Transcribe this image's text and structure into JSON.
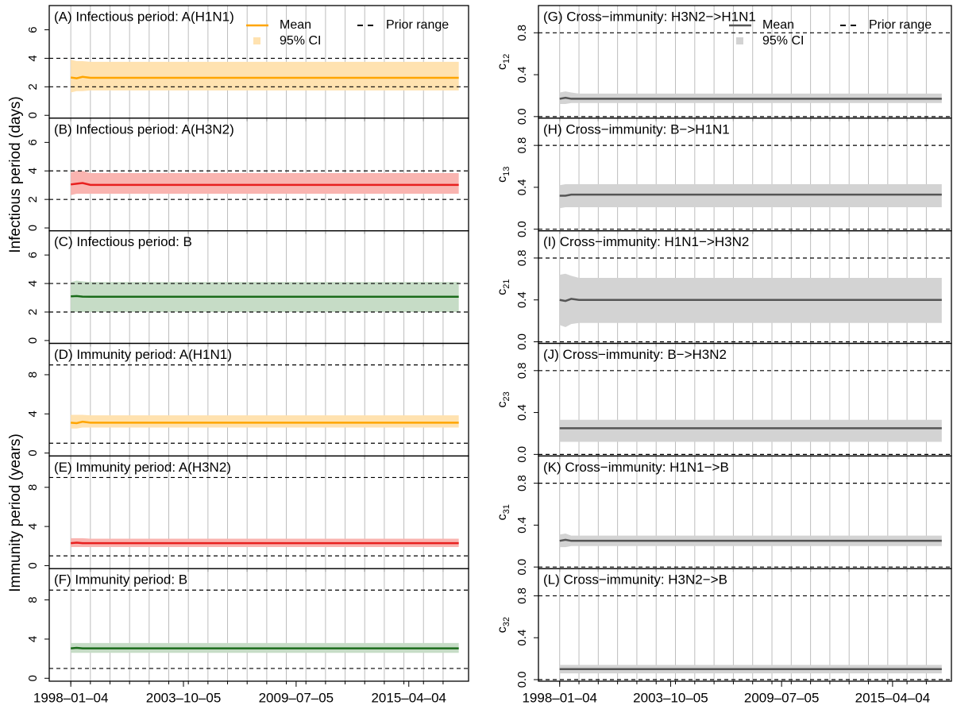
{
  "left_axis_labels": [
    "Infectious period (days)",
    "Immunity period (years)"
  ],
  "chart_data": [
    {
      "type": "line",
      "title": "(A) Infectious period: A(H1N1)",
      "legend": "top-right",
      "x": [
        1998.0,
        1998.3,
        1998.6,
        1999.0,
        2017.8
      ],
      "series": [
        {
          "name": "Mean",
          "color": "#ffa500",
          "values": [
            2.65,
            2.6,
            2.7,
            2.63,
            2.63
          ]
        }
      ],
      "ci": {
        "name": "95% CI",
        "color": "#ffe2b0",
        "lower": [
          1.6,
          1.7,
          1.7,
          1.75,
          1.75
        ],
        "upper": [
          3.9,
          3.8,
          3.8,
          3.75,
          3.75
        ]
      },
      "prior": {
        "name": "Prior range",
        "values": [
          2,
          4
        ]
      },
      "xlim": [
        1996.9,
        2018.3
      ],
      "xgrid": [
        1998,
        1999,
        2000,
        2001,
        2002,
        2003,
        2004,
        2005,
        2006,
        2007,
        2008,
        2009,
        2010,
        2011,
        2012,
        2013,
        2014,
        2015,
        2016,
        2017
      ],
      "ylim": [
        -0.2,
        7.7
      ],
      "yticks": [
        0,
        2,
        4,
        6
      ]
    },
    {
      "type": "line",
      "title": "(B) Infectious period: A(H3N2)",
      "x": [
        1998.0,
        1998.3,
        1998.6,
        1999.0,
        2017.8
      ],
      "series": [
        {
          "color": "#e8201f",
          "values": [
            3.05,
            3.1,
            3.15,
            3.02,
            3.02
          ]
        }
      ],
      "ci": {
        "color": "#f9b4b0",
        "lower": [
          2.3,
          2.4,
          2.4,
          2.4,
          2.4
        ],
        "upper": [
          3.9,
          4.0,
          4.0,
          3.85,
          3.85
        ]
      },
      "prior": {
        "values": [
          2,
          4
        ]
      },
      "xlim": [
        1996.9,
        2018.3
      ],
      "xgrid": [
        1998,
        1999,
        2000,
        2001,
        2002,
        2003,
        2004,
        2005,
        2006,
        2007,
        2008,
        2009,
        2010,
        2011,
        2012,
        2013,
        2014,
        2015,
        2016,
        2017
      ],
      "ylim": [
        -0.2,
        7.7
      ],
      "yticks": [
        0,
        2,
        4,
        6
      ]
    },
    {
      "type": "line",
      "title": "(C) Infectious period: B",
      "x": [
        1998.0,
        1998.3,
        1998.6,
        1999.0,
        2017.8
      ],
      "series": [
        {
          "color": "#1a6b1a",
          "values": [
            3.1,
            3.12,
            3.08,
            3.07,
            3.07
          ]
        }
      ],
      "ci": {
        "color": "#c6dcc6",
        "lower": [
          2.0,
          2.0,
          2.0,
          2.0,
          2.0
        ],
        "upper": [
          4.1,
          4.2,
          4.15,
          4.1,
          4.1
        ]
      },
      "prior": {
        "values": [
          2,
          4
        ]
      },
      "xlim": [
        1996.9,
        2018.3
      ],
      "xgrid": [
        1998,
        1999,
        2000,
        2001,
        2002,
        2003,
        2004,
        2005,
        2006,
        2007,
        2008,
        2009,
        2010,
        2011,
        2012,
        2013,
        2014,
        2015,
        2016,
        2017
      ],
      "ylim": [
        -0.2,
        7.7
      ],
      "yticks": [
        0,
        2,
        4,
        6
      ]
    },
    {
      "type": "line",
      "title": "(D) Immunity period: A(H1N1)",
      "x": [
        1998.0,
        1998.3,
        1998.6,
        1999.0,
        2017.8
      ],
      "series": [
        {
          "color": "#ffa500",
          "values": [
            3.1,
            3.05,
            3.2,
            3.1,
            3.1
          ]
        }
      ],
      "ci": {
        "color": "#ffe2b0",
        "lower": [
          2.5,
          2.5,
          2.6,
          2.6,
          2.6
        ],
        "upper": [
          3.9,
          3.9,
          3.9,
          3.85,
          3.85
        ]
      },
      "prior": {
        "values": [
          1,
          9
        ]
      },
      "xlim": [
        1996.9,
        2018.3
      ],
      "xgrid": [
        1998,
        1999,
        2000,
        2001,
        2002,
        2003,
        2004,
        2005,
        2006,
        2007,
        2008,
        2009,
        2010,
        2011,
        2012,
        2013,
        2014,
        2015,
        2016,
        2017
      ],
      "ylim": [
        -0.3,
        11.2
      ],
      "yticks": [
        0,
        4,
        8
      ]
    },
    {
      "type": "line",
      "title": "(E) Immunity period: A(H3N2)",
      "x": [
        1998.0,
        1998.3,
        1998.6,
        1999.0,
        2017.8
      ],
      "series": [
        {
          "color": "#e8201f",
          "values": [
            2.3,
            2.35,
            2.3,
            2.3,
            2.3
          ]
        }
      ],
      "ci": {
        "color": "#f9b4b0",
        "lower": [
          1.9,
          1.9,
          1.9,
          1.9,
          1.9
        ],
        "upper": [
          2.8,
          2.8,
          2.8,
          2.75,
          2.75
        ]
      },
      "prior": {
        "values": [
          1,
          9
        ]
      },
      "xlim": [
        1996.9,
        2018.3
      ],
      "xgrid": [
        1998,
        1999,
        2000,
        2001,
        2002,
        2003,
        2004,
        2005,
        2006,
        2007,
        2008,
        2009,
        2010,
        2011,
        2012,
        2013,
        2014,
        2015,
        2016,
        2017
      ],
      "ylim": [
        -0.3,
        11.2
      ],
      "yticks": [
        0,
        4,
        8
      ]
    },
    {
      "type": "line",
      "title": "(F) Immunity period: B",
      "x": [
        1998.0,
        1998.3,
        1998.6,
        1999.0,
        2017.8
      ],
      "series": [
        {
          "color": "#1a6b1a",
          "values": [
            3.05,
            3.1,
            3.05,
            3.05,
            3.05
          ]
        }
      ],
      "ci": {
        "color": "#c6dcc6",
        "lower": [
          2.6,
          2.6,
          2.6,
          2.6,
          2.6
        ],
        "upper": [
          3.6,
          3.6,
          3.6,
          3.6,
          3.6
        ]
      },
      "prior": {
        "values": [
          1,
          9
        ]
      },
      "xlim": [
        1996.9,
        2018.3
      ],
      "xgrid": [
        1998,
        1999,
        2000,
        2001,
        2002,
        2003,
        2004,
        2005,
        2006,
        2007,
        2008,
        2009,
        2010,
        2011,
        2012,
        2013,
        2014,
        2015,
        2016,
        2017
      ],
      "xticks": [
        {
          "value": 1998.0,
          "label": "1998–01–04"
        },
        {
          "value": 2003.75,
          "label": "2003–10–05"
        },
        {
          "value": 2009.5,
          "label": "2009–07–05"
        },
        {
          "value": 2015.25,
          "label": "2015–04–04"
        }
      ],
      "ylim": [
        -0.3,
        11.2
      ],
      "yticks": [
        0,
        4,
        8
      ]
    },
    {
      "type": "line",
      "title": "(G) Cross−immunity: H3N2−>H1N1",
      "ylabel": "c",
      "ylabel_sub": "12",
      "legend": "top-right",
      "x": [
        1998.0,
        1998.3,
        1998.6,
        1999.0,
        2017.8
      ],
      "series": [
        {
          "name": "Mean",
          "color": "#555555",
          "values": [
            0.17,
            0.18,
            0.17,
            0.17,
            0.17
          ]
        }
      ],
      "ci": {
        "name": "95% CI",
        "color": "#d3d3d3",
        "lower": [
          0.12,
          0.12,
          0.13,
          0.13,
          0.13
        ],
        "upper": [
          0.23,
          0.24,
          0.23,
          0.22,
          0.22
        ]
      },
      "prior": {
        "name": "Prior range",
        "values": [
          0,
          0.8
        ]
      },
      "xlim": [
        1996.9,
        2018.3
      ],
      "xgrid": [
        1998,
        1999,
        2000,
        2001,
        2002,
        2003,
        2004,
        2005,
        2006,
        2007,
        2008,
        2009,
        2010,
        2011,
        2012,
        2013,
        2014,
        2015,
        2016,
        2017
      ],
      "ylim": [
        -0.015,
        1.06
      ],
      "yticks": [
        {
          "value": 0,
          "label": "0.0"
        },
        0.4,
        0.8
      ]
    },
    {
      "type": "line",
      "title": "(H) Cross−immunity: B−>H1N1",
      "ylabel": "c",
      "ylabel_sub": "13",
      "x": [
        1998.0,
        1998.3,
        1998.6,
        1999.0,
        2017.8
      ],
      "series": [
        {
          "color": "#555555",
          "values": [
            0.32,
            0.32,
            0.33,
            0.33,
            0.33
          ]
        }
      ],
      "ci": {
        "color": "#d3d3d3",
        "lower": [
          0.2,
          0.21,
          0.21,
          0.21,
          0.21
        ],
        "upper": [
          0.42,
          0.43,
          0.43,
          0.43,
          0.43
        ]
      },
      "prior": {
        "values": [
          0,
          0.8
        ]
      },
      "xlim": [
        1996.9,
        2018.3
      ],
      "xgrid": [
        1998,
        1999,
        2000,
        2001,
        2002,
        2003,
        2004,
        2005,
        2006,
        2007,
        2008,
        2009,
        2010,
        2011,
        2012,
        2013,
        2014,
        2015,
        2016,
        2017
      ],
      "ylim": [
        -0.015,
        1.06
      ],
      "yticks": [
        {
          "value": 0,
          "label": "0.0"
        },
        0.4,
        0.8
      ]
    },
    {
      "type": "line",
      "title": "(I) Cross−immunity: H1N1−>H3N2",
      "ylabel": "c",
      "ylabel_sub": "21",
      "x": [
        1998.0,
        1998.3,
        1998.6,
        1999.0,
        2017.8
      ],
      "series": [
        {
          "color": "#555555",
          "values": [
            0.4,
            0.39,
            0.41,
            0.4,
            0.4
          ]
        }
      ],
      "ci": {
        "color": "#d3d3d3",
        "lower": [
          0.16,
          0.14,
          0.17,
          0.18,
          0.18
        ],
        "upper": [
          0.64,
          0.65,
          0.63,
          0.61,
          0.61
        ]
      },
      "prior": {
        "values": [
          0,
          0.8
        ]
      },
      "xlim": [
        1996.9,
        2018.3
      ],
      "xgrid": [
        1998,
        1999,
        2000,
        2001,
        2002,
        2003,
        2004,
        2005,
        2006,
        2007,
        2008,
        2009,
        2010,
        2011,
        2012,
        2013,
        2014,
        2015,
        2016,
        2017
      ],
      "ylim": [
        -0.015,
        1.06
      ],
      "yticks": [
        {
          "value": 0,
          "label": "0.0"
        },
        0.4,
        0.8
      ]
    },
    {
      "type": "line",
      "title": "(J) Cross−immunity: B−>H3N2",
      "ylabel": "c",
      "ylabel_sub": "23",
      "x": [
        1998.0,
        1998.3,
        1998.6,
        1999.0,
        2017.8
      ],
      "series": [
        {
          "color": "#555555",
          "values": [
            0.25,
            0.25,
            0.25,
            0.25,
            0.25
          ]
        }
      ],
      "ci": {
        "color": "#d3d3d3",
        "lower": [
          0.12,
          0.12,
          0.12,
          0.12,
          0.12
        ],
        "upper": [
          0.33,
          0.33,
          0.33,
          0.33,
          0.33
        ]
      },
      "prior": {
        "values": [
          0,
          0.8
        ]
      },
      "xlim": [
        1996.9,
        2018.3
      ],
      "xgrid": [
        1998,
        1999,
        2000,
        2001,
        2002,
        2003,
        2004,
        2005,
        2006,
        2007,
        2008,
        2009,
        2010,
        2011,
        2012,
        2013,
        2014,
        2015,
        2016,
        2017
      ],
      "ylim": [
        -0.015,
        1.06
      ],
      "yticks": [
        {
          "value": 0,
          "label": "0.0"
        },
        0.4,
        0.8
      ]
    },
    {
      "type": "line",
      "title": "(K) Cross−immunity: H1N1−>B",
      "ylabel": "c",
      "ylabel_sub": "31",
      "x": [
        1998.0,
        1998.3,
        1998.6,
        1999.0,
        2017.8
      ],
      "series": [
        {
          "color": "#555555",
          "values": [
            0.25,
            0.26,
            0.25,
            0.25,
            0.25
          ]
        }
      ],
      "ci": {
        "color": "#d3d3d3",
        "lower": [
          0.19,
          0.19,
          0.2,
          0.2,
          0.2
        ],
        "upper": [
          0.31,
          0.32,
          0.3,
          0.3,
          0.3
        ]
      },
      "prior": {
        "values": [
          0,
          0.8
        ]
      },
      "xlim": [
        1996.9,
        2018.3
      ],
      "xgrid": [
        1998,
        1999,
        2000,
        2001,
        2002,
        2003,
        2004,
        2005,
        2006,
        2007,
        2008,
        2009,
        2010,
        2011,
        2012,
        2013,
        2014,
        2015,
        2016,
        2017
      ],
      "ylim": [
        -0.015,
        1.06
      ],
      "yticks": [
        {
          "value": 0,
          "label": "0.0"
        },
        0.4,
        0.8
      ]
    },
    {
      "type": "line",
      "title": "(L) Cross−immunity: H3N2−>B",
      "ylabel": "c",
      "ylabel_sub": "32",
      "x": [
        1998.0,
        1998.3,
        1998.6,
        1999.0,
        2017.8
      ],
      "series": [
        {
          "color": "#555555",
          "values": [
            0.1,
            0.1,
            0.1,
            0.1,
            0.1
          ]
        }
      ],
      "ci": {
        "color": "#d3d3d3",
        "lower": [
          0.06,
          0.06,
          0.06,
          0.06,
          0.06
        ],
        "upper": [
          0.14,
          0.14,
          0.14,
          0.14,
          0.14
        ]
      },
      "prior": {
        "values": [
          0,
          0.8
        ]
      },
      "xlim": [
        1996.9,
        2018.3
      ],
      "xgrid": [
        1998,
        1999,
        2000,
        2001,
        2002,
        2003,
        2004,
        2005,
        2006,
        2007,
        2008,
        2009,
        2010,
        2011,
        2012,
        2013,
        2014,
        2015,
        2016,
        2017
      ],
      "xticks": [
        {
          "value": 1998.0,
          "label": "1998–01–04"
        },
        {
          "value": 2003.75,
          "label": "2003–10–05"
        },
        {
          "value": 2009.5,
          "label": "2009–07–05"
        },
        {
          "value": 2015.25,
          "label": "2015–04–04"
        }
      ],
      "ylim": [
        -0.015,
        1.06
      ],
      "yticks": [
        {
          "value": 0,
          "label": "0.0"
        },
        0.4,
        0.8
      ]
    }
  ]
}
